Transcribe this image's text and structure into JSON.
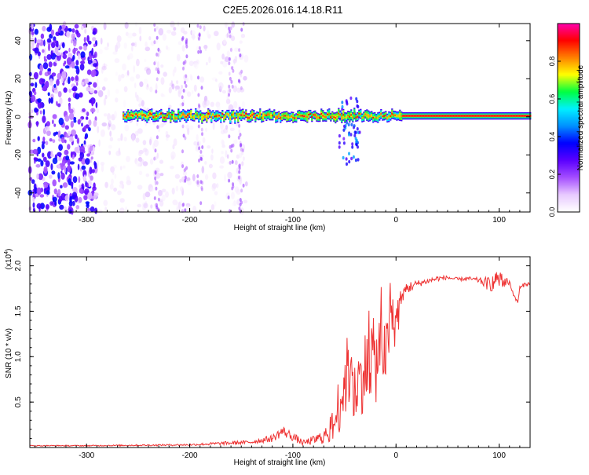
{
  "chart_data": [
    {
      "type": "heatmap",
      "title": "C2E5.2026.016.14.18.R11",
      "xlabel": "Height of straight line (km)",
      "ylabel": "Frequency (Hz)",
      "xlim": [
        -355,
        130
      ],
      "ylim": [
        -50,
        49
      ],
      "xticks": [
        -300,
        -200,
        -100,
        0,
        100
      ],
      "yticks": [
        -40,
        -20,
        0,
        20,
        40
      ],
      "colorbar": {
        "label": "Normalized spectral amplitude",
        "range": [
          0.0,
          1.0
        ],
        "ticks": [
          0.0,
          0.2,
          0.4,
          0.6,
          0.8
        ],
        "tick_labels": [
          "0.0",
          "0.2",
          "0.4",
          "0.6",
          "0.8"
        ],
        "colors": [
          "#ffffff",
          "#e8c8ff",
          "#a44dff",
          "#5a00ff",
          "#0000ff",
          "#0090ff",
          "#00f0ff",
          "#00ff40",
          "#ffff00",
          "#ff8000",
          "#ff0000",
          "#ff00b0"
        ]
      },
      "regions": [
        {
          "name": "broadband noise",
          "x_range": [
            -355,
            -290
          ],
          "freq_range": [
            -50,
            49
          ],
          "amplitude": 0.2
        },
        {
          "name": "sparse noise",
          "x_range": [
            -290,
            -145
          ],
          "freq_range": [
            -50,
            49
          ],
          "amplitude": 0.1
        },
        {
          "name": "carrier band",
          "x_range": [
            -265,
            130
          ],
          "freq_range": [
            -2,
            3
          ],
          "amplitude": 0.8
        },
        {
          "name": "turbulent spread",
          "x_range": [
            -55,
            -35
          ],
          "freq_range": [
            -25,
            10
          ],
          "amplitude": 0.4
        }
      ]
    },
    {
      "type": "line",
      "xlabel": "Height of straight line (km)",
      "ylabel": "SNR (10 * v/v)",
      "scale_label": "(x10",
      "scale_exponent": "4",
      "scale_suffix": ")",
      "xlim": [
        -355,
        130
      ],
      "ylim": [
        0,
        2.1
      ],
      "xticks": [
        -300,
        -200,
        -100,
        0,
        100
      ],
      "yticks": [
        0.5,
        1.0,
        1.5,
        2.0
      ],
      "ytick_labels": [
        "0.5",
        "1.0",
        "1.5",
        "2.0"
      ],
      "color": "#ee3333",
      "series": [
        {
          "name": "SNR",
          "x": [
            -355,
            -300,
            -250,
            -200,
            -180,
            -160,
            -140,
            -120,
            -110,
            -100,
            -90,
            -80,
            -70,
            -60,
            -55,
            -50,
            -45,
            -40,
            -35,
            -30,
            -25,
            -20,
            -15,
            -10,
            -5,
            0,
            5,
            10,
            20,
            30,
            40,
            50,
            60,
            70,
            80,
            90,
            100,
            110,
            115,
            118,
            120,
            125,
            130
          ],
          "y": [
            0.02,
            0.02,
            0.025,
            0.03,
            0.04,
            0.05,
            0.06,
            0.1,
            0.18,
            0.12,
            0.05,
            0.08,
            0.12,
            0.25,
            0.5,
            0.7,
            0.9,
            0.55,
            0.75,
            0.85,
            1.05,
            0.9,
            1.15,
            1.0,
            1.4,
            1.35,
            1.6,
            1.75,
            1.8,
            1.83,
            1.86,
            1.87,
            1.85,
            1.86,
            1.84,
            1.8,
            1.83,
            1.82,
            1.65,
            1.6,
            1.75,
            1.8,
            1.8
          ],
          "noise_amplitude": [
            0.005,
            0.006,
            0.008,
            0.01,
            0.015,
            0.02,
            0.02,
            0.04,
            0.06,
            0.05,
            0.03,
            0.05,
            0.08,
            0.2,
            0.35,
            0.4,
            0.45,
            0.4,
            0.4,
            0.45,
            0.5,
            0.45,
            0.4,
            0.35,
            0.3,
            0.25,
            0.15,
            0.08,
            0.04,
            0.03,
            0.03,
            0.02,
            0.02,
            0.02,
            0.03,
            0.08,
            0.12,
            0.03,
            0.02,
            0.02,
            0.03,
            0.02,
            0.02
          ]
        }
      ]
    }
  ]
}
